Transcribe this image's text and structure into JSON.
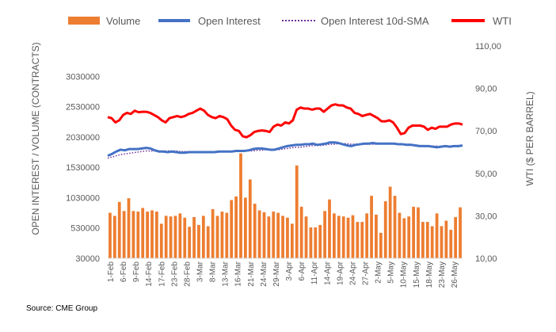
{
  "chart_data": {
    "type": "bar+line",
    "source": "Source: CME Group",
    "ylabel_left": "OPEN INTEREST / VOLUME (CONTRACTS)",
    "ylabel_right": "WTI ($ PER BARREL)",
    "ylim_left": [
      30000,
      3530000
    ],
    "ylim_right": [
      10,
      110
    ],
    "yticks_left": [
      "30000",
      "530000",
      "1030000",
      "1530000",
      "2030000",
      "2530000",
      "3030000"
    ],
    "yticks_right": [
      "10,00",
      "30,00",
      "50,00",
      "70,00",
      "90,00",
      "110,00"
    ],
    "x_tick_labels": [
      "1-Feb",
      "6-Feb",
      "9-Feb",
      "14-Feb",
      "17-Feb",
      "23-Feb",
      "28-Feb",
      "3-Mar",
      "8-Mar",
      "13-Mar",
      "16-Mar",
      "21-Mar",
      "24-Mar",
      "29-Mar",
      "3-Apr",
      "6-Apr",
      "11-Apr",
      "14-Apr",
      "19-Apr",
      "24-Apr",
      "27-Apr",
      "2-May",
      "5-May",
      "10-May",
      "15-May",
      "18-May",
      "23-May",
      "26-May"
    ],
    "legend": [
      {
        "name": "Volume",
        "type": "bar",
        "color": "#ED7D31"
      },
      {
        "name": "Open Interest",
        "type": "line",
        "color": "#4472C4"
      },
      {
        "name": "Open Interest 10d-SMA",
        "type": "dotted-line",
        "color": "#7030A0"
      },
      {
        "name": "WTI",
        "type": "line",
        "color": "#FF0000"
      }
    ],
    "legend_position": "top",
    "series": [
      {
        "name": "Volume",
        "axis": "left",
        "values": [
          780000,
          730000,
          960000,
          810000,
          1020000,
          810000,
          800000,
          860000,
          800000,
          820000,
          800000,
          600000,
          730000,
          720000,
          730000,
          770000,
          700000,
          550000,
          710000,
          580000,
          730000,
          560000,
          840000,
          730000,
          800000,
          780000,
          990000,
          1050000,
          1760000,
          1030000,
          1330000,
          930000,
          820000,
          790000,
          720000,
          800000,
          780000,
          730000,
          700000,
          600000,
          1560000,
          880000,
          720000,
          540000,
          540000,
          580000,
          810000,
          1000000,
          770000,
          730000,
          720000,
          700000,
          740000,
          630000,
          630000,
          770000,
          1060000,
          750000,
          450000,
          970000,
          1210000,
          1060000,
          780000,
          690000,
          720000,
          880000,
          870000,
          630000,
          630000,
          560000,
          770000,
          560000,
          650000,
          500000,
          710000,
          870000
        ]
      },
      {
        "name": "Open Interest",
        "axis": "left",
        "values": [
          1720000,
          1750000,
          1790000,
          1820000,
          1810000,
          1830000,
          1830000,
          1830000,
          1840000,
          1850000,
          1840000,
          1810000,
          1790000,
          1790000,
          1780000,
          1790000,
          1780000,
          1770000,
          1770000,
          1780000,
          1780000,
          1780000,
          1780000,
          1780000,
          1780000,
          1780000,
          1790000,
          1790000,
          1790000,
          1790000,
          1800000,
          1800000,
          1800000,
          1810000,
          1830000,
          1840000,
          1840000,
          1830000,
          1820000,
          1820000,
          1840000,
          1860000,
          1880000,
          1890000,
          1900000,
          1900000,
          1910000,
          1910000,
          1920000,
          1900000,
          1910000,
          1920000,
          1940000,
          1940000,
          1930000,
          1910000,
          1890000,
          1880000,
          1900000,
          1910000,
          1920000,
          1920000,
          1930000,
          1920000,
          1920000,
          1920000,
          1920000,
          1920000,
          1910000,
          1910000,
          1900000,
          1900000,
          1890000,
          1880000,
          1880000,
          1880000,
          1870000,
          1860000,
          1870000,
          1880000,
          1870000,
          1880000,
          1880000,
          1890000
        ]
      },
      {
        "name": "Open Interest 10d-SMA",
        "axis": "left",
        "values": [
          1680000,
          1700000,
          1720000,
          1740000,
          1750000,
          1760000,
          1770000,
          1780000,
          1790000,
          1800000,
          1800000,
          1800000,
          1800000,
          1800000,
          1800000,
          1800000,
          1800000,
          1790000,
          1790000,
          1790000,
          1790000,
          1790000,
          1790000,
          1790000,
          1780000,
          1780000,
          1780000,
          1790000,
          1790000,
          1790000,
          1790000,
          1790000,
          1800000,
          1800000,
          1800000,
          1810000,
          1810000,
          1820000,
          1820000,
          1820000,
          1820000,
          1830000,
          1840000,
          1850000,
          1860000,
          1860000,
          1870000,
          1880000,
          1890000,
          1890000,
          1890000,
          1900000,
          1910000,
          1910000,
          1920000,
          1920000,
          1920000,
          1910000,
          1910000,
          1910000,
          1910000,
          1910000,
          1910000,
          1910000,
          1920000,
          1920000,
          1920000,
          1920000,
          1920000,
          1910000,
          1910000,
          1910000,
          1900000,
          1890000,
          1890000,
          1880000,
          1880000,
          1880000,
          1870000,
          1870000,
          1870000,
          1870000,
          1870000,
          1880000
        ]
      },
      {
        "name": "WTI",
        "axis": "right",
        "values": [
          76.5,
          76.0,
          74.0,
          75.0,
          77.5,
          78.5,
          78.0,
          79.5,
          78.8,
          79.0,
          79.0,
          78.5,
          77.5,
          76.5,
          75.0,
          74.0,
          76.0,
          76.5,
          77.0,
          76.5,
          77.0,
          78.0,
          78.5,
          79.5,
          80.5,
          79.5,
          77.5,
          76.5,
          76.0,
          77.0,
          76.5,
          75.5,
          72.5,
          70.5,
          70.0,
          67.5,
          67.0,
          68.0,
          69.5,
          70.0,
          70.2,
          70.0,
          69.5,
          72.0,
          73.0,
          72.5,
          74.0,
          73.5,
          75.0,
          80.0,
          81.0,
          80.5,
          80.5,
          80.0,
          80.5,
          80.5,
          79.0,
          80.5,
          82.0,
          82.5,
          82.0,
          82.0,
          81.0,
          80.5,
          78.5,
          78.0,
          77.0,
          77.5,
          78.0,
          77.0,
          76.0,
          74.5,
          74.5,
          75.0,
          74.0,
          71.5,
          68.5,
          69.0,
          71.5,
          72.5,
          72.5,
          72.5,
          72.0,
          70.5,
          71.5,
          71.0,
          72.0,
          72.0,
          72.0,
          73.0,
          73.5,
          73.5,
          73.0
        ]
      }
    ]
  }
}
